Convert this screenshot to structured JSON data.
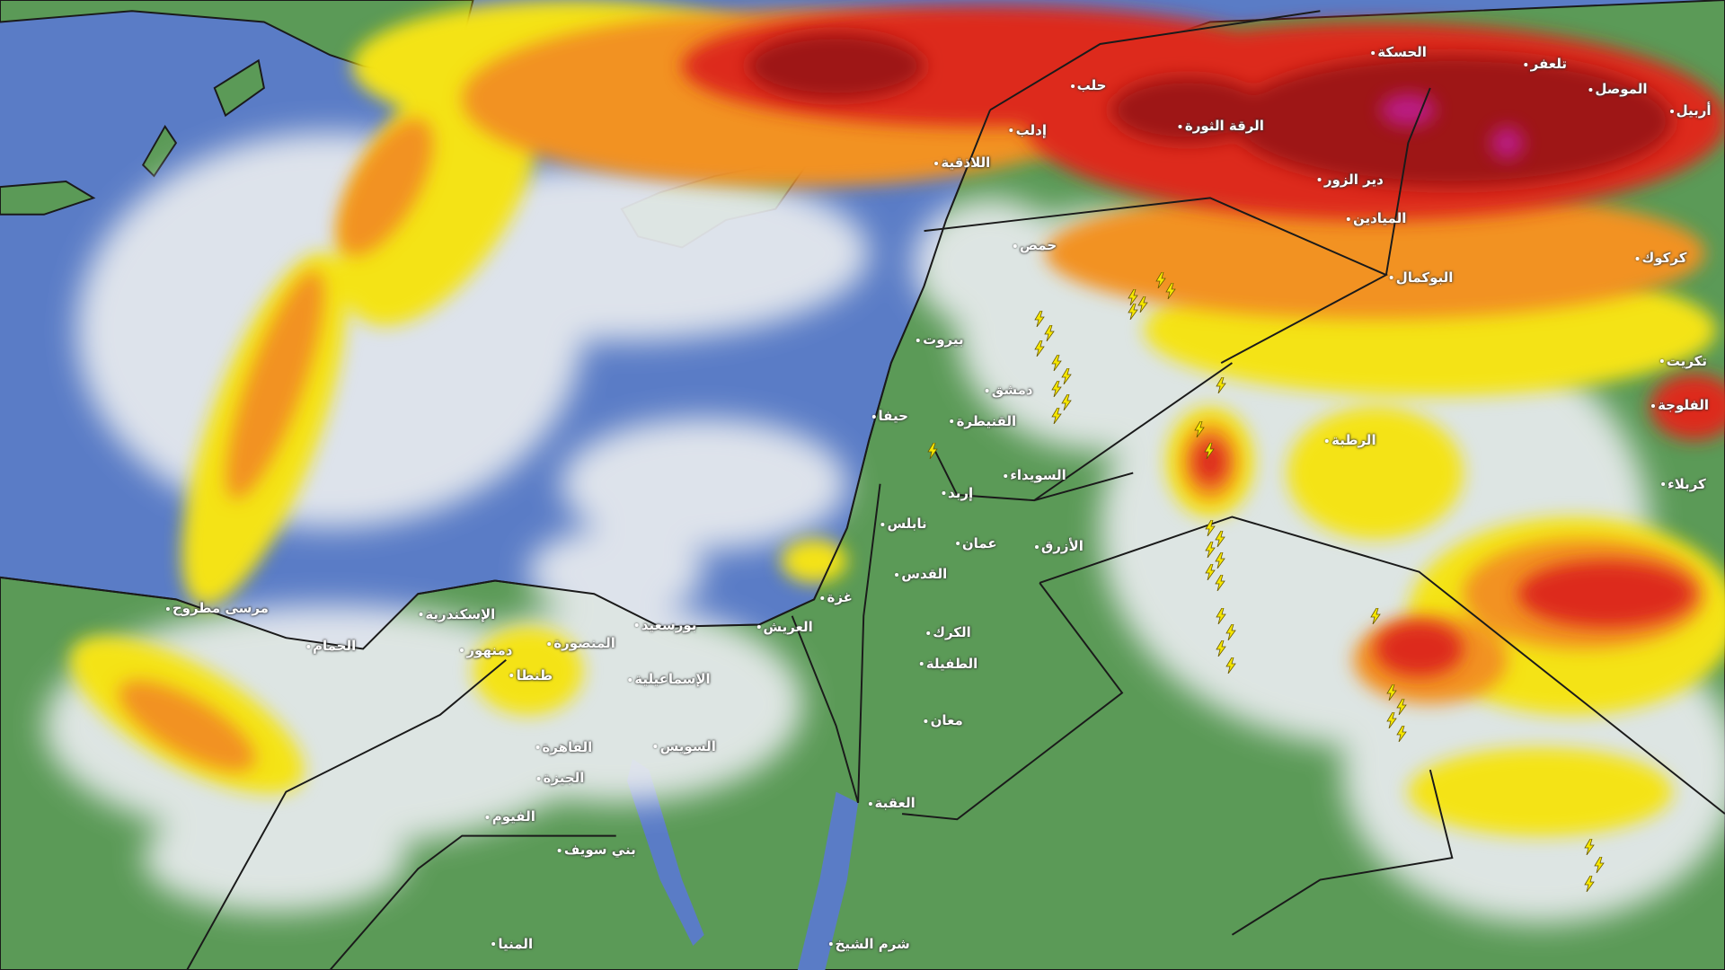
{
  "map": {
    "type": "satellite-infrared-cloud-top",
    "colors": {
      "sea": "#5a7cc6",
      "land": "#5b9a57",
      "cloud_low": "#e9ecef",
      "cloud_mid": "#f4e312",
      "cloud_high": "#f29222",
      "cloud_very_high": "#dd2a1a",
      "cloud_extreme": "#9e1212",
      "cloud_peak": "#c21fa0",
      "lightning": "#f7e800",
      "borders": "#1a1a1a"
    },
    "lightning_icon": "lightning-bolt-icon",
    "cities": [
      {
        "name": "الحسكة"
      },
      {
        "name": "تلعفر"
      },
      {
        "name": "الموصل"
      },
      {
        "name": "أربيل"
      },
      {
        "name": "حلب"
      },
      {
        "name": "الرقة الثورة"
      },
      {
        "name": "إدلب"
      },
      {
        "name": "اللاذقية"
      },
      {
        "name": "دير الزور"
      },
      {
        "name": "الميادين"
      },
      {
        "name": "حمص"
      },
      {
        "name": "البوكمال"
      },
      {
        "name": "بيروت"
      },
      {
        "name": "دمشق"
      },
      {
        "name": "القنيطرة"
      },
      {
        "name": "حيفا"
      },
      {
        "name": "السويداء"
      },
      {
        "name": "إربد"
      },
      {
        "name": "نابلس"
      },
      {
        "name": "عمان"
      },
      {
        "name": "الأزرق"
      },
      {
        "name": "القدس"
      },
      {
        "name": "غزة"
      },
      {
        "name": "العريش"
      },
      {
        "name": "بورسعيد"
      },
      {
        "name": "الإسكندرية"
      },
      {
        "name": "مرسى مطروح"
      },
      {
        "name": "الحمام"
      },
      {
        "name": "الكرك"
      },
      {
        "name": "الطفيلة"
      },
      {
        "name": "المنصورة"
      },
      {
        "name": "دمنهور"
      },
      {
        "name": "طنطا"
      },
      {
        "name": "الإسماعيلية"
      },
      {
        "name": "معان"
      },
      {
        "name": "السويس"
      },
      {
        "name": "القاهرة"
      },
      {
        "name": "الجيزة"
      },
      {
        "name": "العقبة"
      },
      {
        "name": "بني سويف"
      },
      {
        "name": "الفيوم"
      },
      {
        "name": "شرم الشيخ"
      },
      {
        "name": "المنيا"
      },
      {
        "name": "الرطبة"
      },
      {
        "name": "كركوك"
      },
      {
        "name": "تكريت"
      },
      {
        "name": "الفلوجة"
      },
      {
        "name": "كربلاء"
      }
    ]
  }
}
